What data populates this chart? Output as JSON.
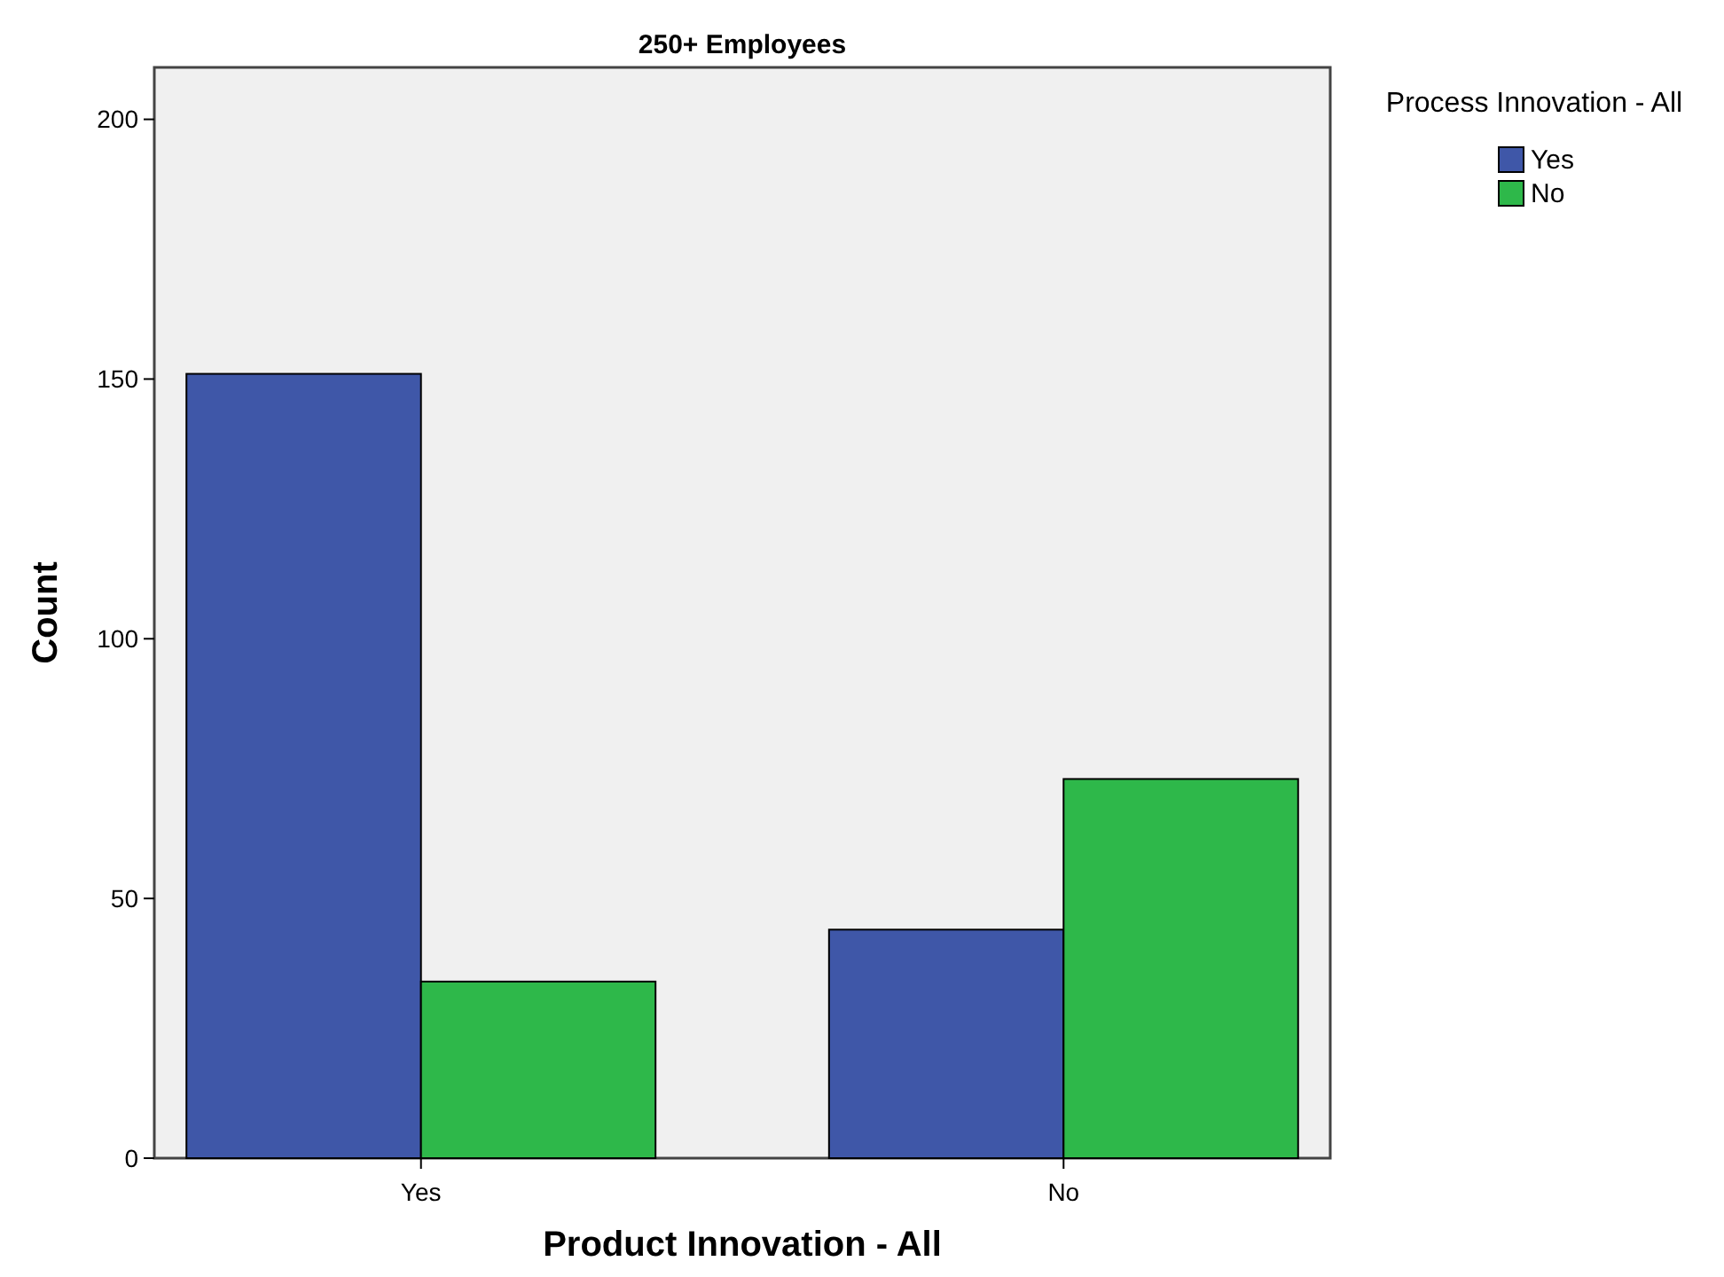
{
  "chart_data": {
    "type": "bar",
    "title": "250+ Employees",
    "xlabel": "Product Innovation - All",
    "ylabel": "Count",
    "legend_title": "Process Innovation - All",
    "categories": [
      "Yes",
      "No"
    ],
    "series": [
      {
        "name": "Yes",
        "color": "#3f57a8",
        "values": [
          151,
          44
        ]
      },
      {
        "name": "No",
        "color": "#2eb84a",
        "values": [
          34,
          73
        ]
      }
    ],
    "ylim": [
      0,
      210
    ],
    "yticks": [
      0,
      50,
      100,
      150,
      200
    ],
    "grid": false,
    "legend": "top right"
  }
}
